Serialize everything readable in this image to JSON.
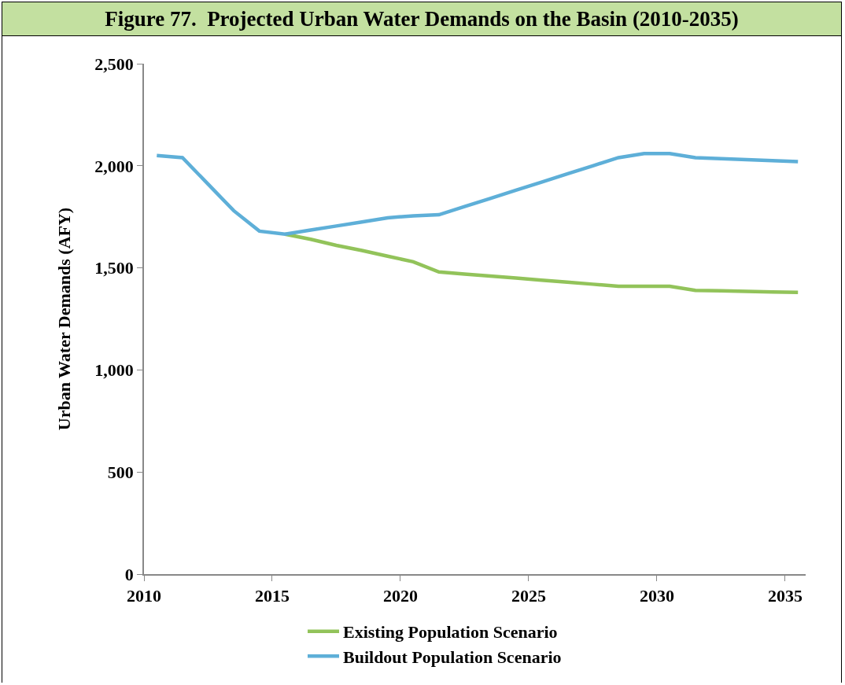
{
  "chart_data": {
    "type": "line",
    "title": "Figure 77.  Projected Urban Water Demands on the Basin (2010-2035)",
    "ylabel": "Urban Water Demands (AFY)",
    "x": [
      2010.5,
      2011.5,
      2012.5,
      2013.5,
      2014.5,
      2015.5,
      2016.5,
      2017.5,
      2018.5,
      2019.5,
      2020.5,
      2021.5,
      2022.5,
      2023.5,
      2024.5,
      2025.5,
      2026.5,
      2027.5,
      2028.5,
      2029.5,
      2030.5,
      2031.5,
      2032.5,
      2033.5,
      2034.5,
      2035.5
    ],
    "series": [
      {
        "name": "Existing Population Scenario",
        "color": "#92c35a",
        "values": [
          null,
          null,
          null,
          null,
          null,
          1665,
          1640,
          1610,
          1585,
          1557,
          1530,
          1480,
          1470,
          1460,
          1450,
          1440,
          1430,
          1420,
          1410,
          1410,
          1410,
          1390,
          1388,
          1385,
          1382,
          1380
        ]
      },
      {
        "name": "Buildout Population Scenario",
        "color": "#5eafd8",
        "values": [
          2050,
          2040,
          1910,
          1780,
          1680,
          1665,
          1685,
          1705,
          1725,
          1745,
          1755,
          1760,
          1800,
          1840,
          1880,
          1920,
          1960,
          2000,
          2040,
          2060,
          2060,
          2040,
          2035,
          2030,
          2025,
          2020
        ]
      }
    ],
    "xlim": [
      2010,
      2035.8
    ],
    "xticks": [
      2010,
      2015,
      2020,
      2025,
      2030,
      2035
    ],
    "ylim": [
      0,
      2500
    ],
    "yticks": [
      {
        "value": 0,
        "label": "0"
      },
      {
        "value": 500,
        "label": "500"
      },
      {
        "value": 1000,
        "label": "1,000"
      },
      {
        "value": 1500,
        "label": "1,500"
      },
      {
        "value": 2000,
        "label": "2,000"
      },
      {
        "value": 2500,
        "label": "2,500"
      }
    ],
    "grid": false,
    "legend": "bottom",
    "marker": "none",
    "line_style": "solid"
  }
}
